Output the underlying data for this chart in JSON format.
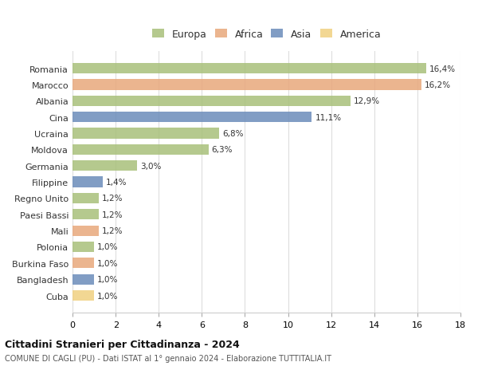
{
  "countries": [
    "Romania",
    "Marocco",
    "Albania",
    "Cina",
    "Ucraina",
    "Moldova",
    "Germania",
    "Filippine",
    "Regno Unito",
    "Paesi Bassi",
    "Mali",
    "Polonia",
    "Burkina Faso",
    "Bangladesh",
    "Cuba"
  ],
  "values": [
    16.4,
    16.2,
    12.9,
    11.1,
    6.8,
    6.3,
    3.0,
    1.4,
    1.2,
    1.2,
    1.2,
    1.0,
    1.0,
    1.0,
    1.0
  ],
  "labels": [
    "16,4%",
    "16,2%",
    "12,9%",
    "11,1%",
    "6,8%",
    "6,3%",
    "3,0%",
    "1,4%",
    "1,2%",
    "1,2%",
    "1,2%",
    "1,0%",
    "1,0%",
    "1,0%",
    "1,0%"
  ],
  "continents": [
    "Europa",
    "Africa",
    "Europa",
    "Asia",
    "Europa",
    "Europa",
    "Europa",
    "Asia",
    "Europa",
    "Europa",
    "Africa",
    "Europa",
    "Africa",
    "Asia",
    "America"
  ],
  "colors": {
    "Europa": "#a8c07a",
    "Africa": "#e8a87c",
    "Asia": "#6b8cba",
    "America": "#f0d080"
  },
  "legend_colors": {
    "Europa": "#a8c07a",
    "Africa": "#e8a87c",
    "Asia": "#6b8cba",
    "America": "#f0d080"
  },
  "title": "Cittadini Stranieri per Cittadinanza - 2024",
  "subtitle": "COMUNE DI CAGLI (PU) - Dati ISTAT al 1° gennaio 2024 - Elaborazione TUTTITALIA.IT",
  "xlim": [
    0,
    18
  ],
  "xticks": [
    0,
    2,
    4,
    6,
    8,
    10,
    12,
    14,
    16,
    18
  ],
  "background_color": "#ffffff",
  "grid_color": "#dddddd"
}
